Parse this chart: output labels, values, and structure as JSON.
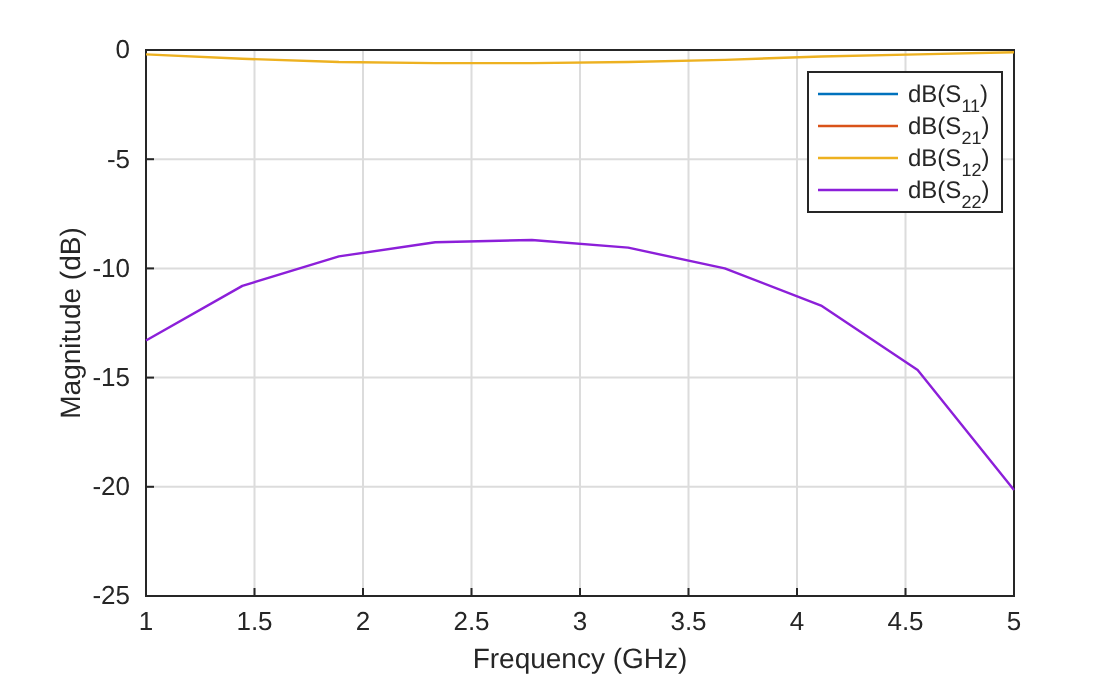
{
  "chart_data": {
    "type": "line",
    "xlabel": "Frequency (GHz)",
    "ylabel": "Magnitude (dB)",
    "x": [
      1,
      1.444,
      1.889,
      2.333,
      2.778,
      3.222,
      3.667,
      4.111,
      4.556,
      5
    ],
    "series": [
      {
        "name": "dB(S$_{11}$)",
        "color": "#0072bd",
        "values": [
          null,
          null,
          null,
          null,
          null,
          null,
          null,
          null,
          null,
          null
        ]
      },
      {
        "name": "dB(S$_{21}$)",
        "color": "#d95319",
        "values": [
          null,
          null,
          null,
          null,
          null,
          null,
          null,
          null,
          null,
          null
        ]
      },
      {
        "name": "dB(S$_{12}$)",
        "color": "#edb120",
        "values": [
          -0.2,
          -0.4,
          -0.55,
          -0.6,
          -0.6,
          -0.55,
          -0.45,
          -0.3,
          -0.2,
          -0.1
        ]
      },
      {
        "name": "dB(S$_{22}$)",
        "color": "#8c1fd9",
        "values": [
          -13.3,
          -10.8,
          -9.45,
          -8.8,
          -8.7,
          -9.05,
          -10.0,
          -11.7,
          -14.65,
          -20.15
        ]
      }
    ],
    "xlim": [
      1,
      5
    ],
    "xticks": [
      1,
      1.5,
      2,
      2.5,
      3,
      3.5,
      4,
      4.5,
      5
    ],
    "ylim": [
      -25,
      0
    ],
    "yticks": [
      -25,
      -20,
      -15,
      -10,
      -5,
      0
    ],
    "grid": true,
    "legend": "top right",
    "line_style": "solid",
    "marker": "none"
  }
}
